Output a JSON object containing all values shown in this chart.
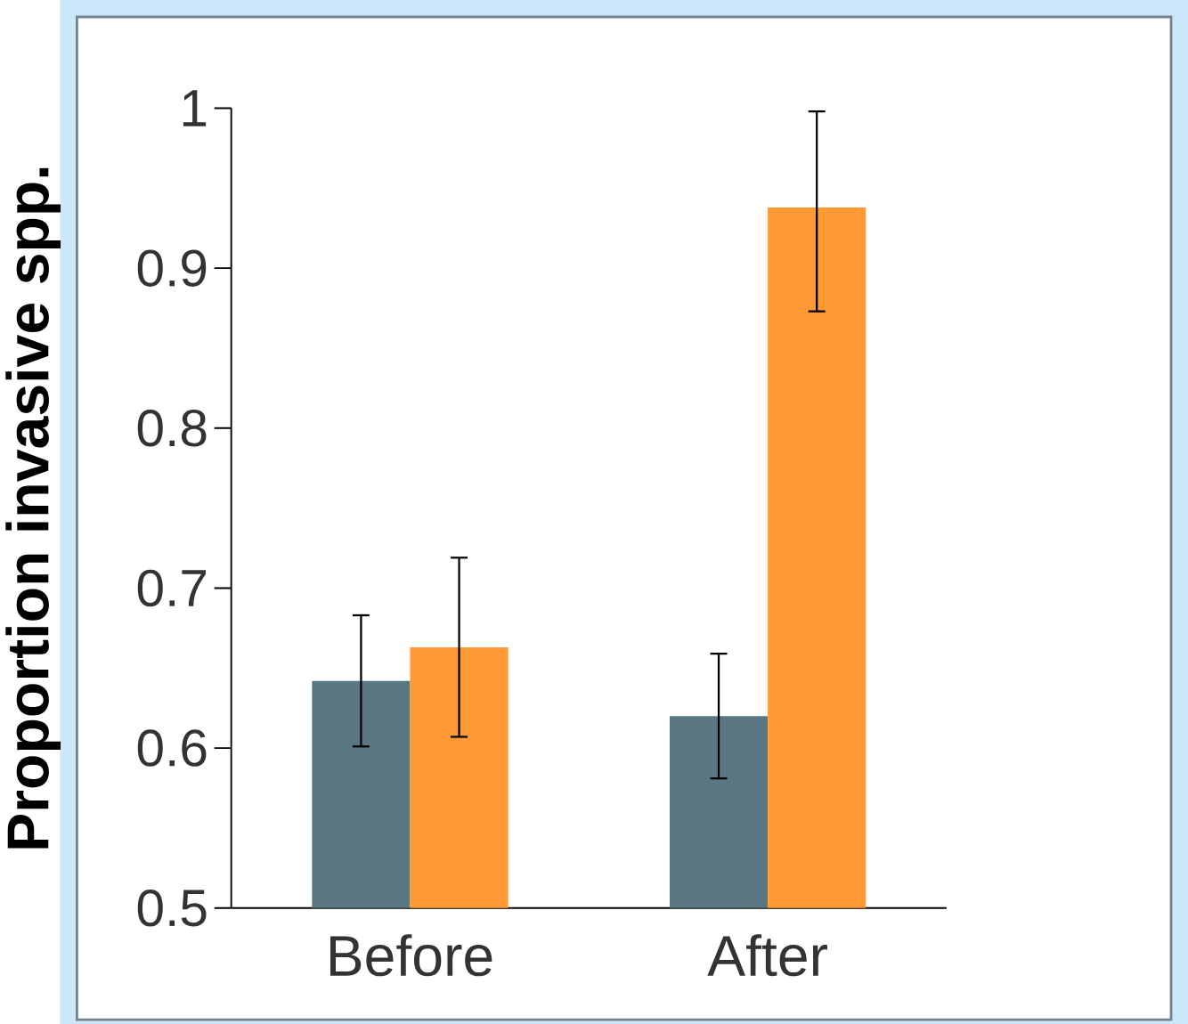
{
  "chart_data": {
    "type": "bar",
    "ylabel": "Proportion invasive spp.",
    "categories": [
      "Before",
      "After"
    ],
    "series": [
      {
        "color": "#5a7784",
        "values": [
          0.642,
          0.62
        ],
        "errors": [
          [
            0.601,
            0.683
          ],
          [
            0.581,
            0.659
          ]
        ]
      },
      {
        "color": "#ff9933",
        "values": [
          0.663,
          0.938
        ],
        "errors": [
          [
            0.607,
            0.719
          ],
          [
            0.873,
            0.998
          ]
        ]
      }
    ],
    "ylim": [
      0.5,
      1
    ],
    "yticks": [
      0.5,
      0.6,
      0.7,
      0.8,
      0.9,
      1
    ]
  }
}
